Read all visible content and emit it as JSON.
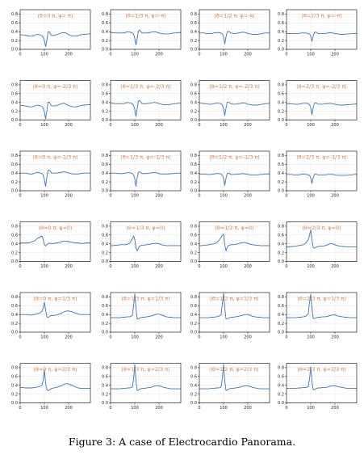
{
  "caption": "Figure 3: A case of Electrocardio Panorama.",
  "colors": {
    "title": "#e07b3a",
    "line": "#3a77b5",
    "grid": "#e3e3e3",
    "axis": "#000000"
  },
  "chart_data": {
    "type": "line",
    "layout": "grid",
    "rows": 6,
    "cols": 4,
    "xlim": [
      0,
      290
    ],
    "ylim": [
      0,
      0.9
    ],
    "xticks": [
      0,
      100,
      200
    ],
    "yticks": [
      0.0,
      0.2,
      0.4,
      0.6,
      0.8
    ],
    "grid": true,
    "x": [
      0,
      10,
      20,
      30,
      40,
      50,
      60,
      70,
      80,
      90,
      95,
      100,
      105,
      110,
      115,
      120,
      125,
      130,
      140,
      150,
      160,
      170,
      180,
      190,
      200,
      210,
      220,
      230,
      240,
      250,
      260,
      270,
      280,
      290
    ],
    "panels": [
      {
        "title": "(θ=0 π, φ=-π)",
        "y": [
          0.33,
          0.33,
          0.32,
          0.31,
          0.3,
          0.3,
          0.32,
          0.34,
          0.33,
          0.31,
          0.28,
          0.2,
          0.06,
          0.2,
          0.39,
          0.4,
          0.35,
          0.31,
          0.32,
          0.33,
          0.35,
          0.37,
          0.38,
          0.37,
          0.33,
          0.31,
          0.3,
          0.3,
          0.31,
          0.33,
          0.34,
          0.34,
          0.35,
          0.35
        ]
      },
      {
        "title": "(θ=1/3 π, φ=-π)",
        "y": [
          0.38,
          0.38,
          0.37,
          0.37,
          0.37,
          0.37,
          0.38,
          0.4,
          0.39,
          0.37,
          0.34,
          0.25,
          0.1,
          0.25,
          0.42,
          0.44,
          0.4,
          0.37,
          0.37,
          0.37,
          0.38,
          0.39,
          0.4,
          0.39,
          0.37,
          0.36,
          0.35,
          0.35,
          0.35,
          0.36,
          0.37,
          0.37,
          0.38,
          0.38
        ]
      },
      {
        "title": "(θ=1/2 π, φ=-π)",
        "y": [
          0.37,
          0.37,
          0.37,
          0.36,
          0.36,
          0.36,
          0.37,
          0.38,
          0.38,
          0.37,
          0.35,
          0.28,
          0.12,
          0.28,
          0.4,
          0.41,
          0.39,
          0.37,
          0.36,
          0.36,
          0.37,
          0.38,
          0.39,
          0.38,
          0.36,
          0.35,
          0.34,
          0.34,
          0.34,
          0.35,
          0.36,
          0.37,
          0.37,
          0.37
        ]
      },
      {
        "title": "(θ=2/3 π, φ=-π)",
        "y": [
          0.36,
          0.36,
          0.36,
          0.36,
          0.36,
          0.36,
          0.37,
          0.37,
          0.37,
          0.36,
          0.35,
          0.3,
          0.18,
          0.3,
          0.38,
          0.39,
          0.38,
          0.36,
          0.36,
          0.36,
          0.36,
          0.37,
          0.38,
          0.37,
          0.36,
          0.35,
          0.34,
          0.34,
          0.34,
          0.35,
          0.35,
          0.36,
          0.36,
          0.36
        ]
      },
      {
        "title": "(θ=0 π, φ=-2/3 π)",
        "y": [
          0.33,
          0.33,
          0.32,
          0.31,
          0.3,
          0.3,
          0.32,
          0.34,
          0.33,
          0.31,
          0.27,
          0.18,
          0.03,
          0.2,
          0.4,
          0.41,
          0.36,
          0.32,
          0.32,
          0.33,
          0.35,
          0.37,
          0.38,
          0.36,
          0.33,
          0.31,
          0.3,
          0.3,
          0.31,
          0.33,
          0.34,
          0.34,
          0.35,
          0.35
        ]
      },
      {
        "title": "(θ=1/3 π, φ=-2/3 π)",
        "y": [
          0.38,
          0.38,
          0.37,
          0.37,
          0.37,
          0.37,
          0.38,
          0.4,
          0.39,
          0.37,
          0.33,
          0.24,
          0.08,
          0.26,
          0.43,
          0.45,
          0.41,
          0.37,
          0.37,
          0.37,
          0.38,
          0.39,
          0.4,
          0.39,
          0.37,
          0.36,
          0.35,
          0.35,
          0.35,
          0.36,
          0.37,
          0.37,
          0.38,
          0.38
        ]
      },
      {
        "title": "(θ=1/2 π, φ=-2/3 π)",
        "y": [
          0.38,
          0.38,
          0.37,
          0.37,
          0.36,
          0.36,
          0.37,
          0.38,
          0.38,
          0.37,
          0.34,
          0.26,
          0.1,
          0.27,
          0.4,
          0.41,
          0.39,
          0.37,
          0.36,
          0.36,
          0.37,
          0.38,
          0.39,
          0.38,
          0.36,
          0.35,
          0.34,
          0.34,
          0.34,
          0.35,
          0.36,
          0.37,
          0.37,
          0.38
        ]
      },
      {
        "title": "(θ=2/3 π, φ=-2/3 π)",
        "y": [
          0.37,
          0.37,
          0.37,
          0.36,
          0.36,
          0.36,
          0.37,
          0.38,
          0.38,
          0.37,
          0.35,
          0.28,
          0.12,
          0.28,
          0.38,
          0.39,
          0.38,
          0.36,
          0.36,
          0.36,
          0.37,
          0.37,
          0.38,
          0.37,
          0.36,
          0.35,
          0.34,
          0.34,
          0.34,
          0.35,
          0.35,
          0.36,
          0.36,
          0.37
        ]
      },
      {
        "title": "(θ=0 π, φ=-1/3 π)",
        "y": [
          0.4,
          0.4,
          0.4,
          0.39,
          0.38,
          0.38,
          0.4,
          0.42,
          0.41,
          0.39,
          0.35,
          0.25,
          0.1,
          0.3,
          0.46,
          0.47,
          0.44,
          0.4,
          0.4,
          0.4,
          0.41,
          0.42,
          0.43,
          0.42,
          0.4,
          0.39,
          0.38,
          0.38,
          0.38,
          0.39,
          0.4,
          0.4,
          0.4,
          0.4
        ]
      },
      {
        "title": "(θ=1/3 π, φ=-1/3 π)",
        "y": [
          0.4,
          0.4,
          0.4,
          0.39,
          0.39,
          0.39,
          0.4,
          0.41,
          0.41,
          0.39,
          0.36,
          0.27,
          0.1,
          0.3,
          0.42,
          0.43,
          0.41,
          0.39,
          0.39,
          0.39,
          0.4,
          0.41,
          0.41,
          0.41,
          0.39,
          0.38,
          0.38,
          0.38,
          0.38,
          0.39,
          0.39,
          0.4,
          0.4,
          0.4
        ]
      },
      {
        "title": "(θ=1/2 π, φ=-1/3 π)",
        "y": [
          0.38,
          0.38,
          0.38,
          0.37,
          0.37,
          0.37,
          0.38,
          0.39,
          0.39,
          0.38,
          0.35,
          0.28,
          0.12,
          0.28,
          0.39,
          0.4,
          0.39,
          0.37,
          0.37,
          0.37,
          0.38,
          0.38,
          0.39,
          0.38,
          0.37,
          0.36,
          0.36,
          0.36,
          0.36,
          0.37,
          0.37,
          0.38,
          0.38,
          0.38
        ]
      },
      {
        "title": "(θ=2/3 π, φ=-1/3 π)",
        "y": [
          0.37,
          0.37,
          0.37,
          0.36,
          0.36,
          0.36,
          0.37,
          0.38,
          0.37,
          0.36,
          0.35,
          0.29,
          0.17,
          0.29,
          0.37,
          0.38,
          0.37,
          0.36,
          0.36,
          0.36,
          0.36,
          0.37,
          0.37,
          0.37,
          0.36,
          0.35,
          0.35,
          0.35,
          0.35,
          0.35,
          0.36,
          0.36,
          0.37,
          0.37
        ]
      },
      {
        "title": "(θ=0 π, φ=0)",
        "y": [
          0.42,
          0.42,
          0.42,
          0.42,
          0.43,
          0.45,
          0.47,
          0.52,
          0.55,
          0.58,
          0.5,
          0.38,
          0.35,
          0.38,
          0.4,
          0.42,
          0.41,
          0.4,
          0.41,
          0.42,
          0.43,
          0.45,
          0.46,
          0.46,
          0.45,
          0.44,
          0.43,
          0.42,
          0.42,
          0.41,
          0.41,
          0.42,
          0.42,
          0.42
        ]
      },
      {
        "title": "(θ=1/3 π, φ=0)",
        "y": [
          0.36,
          0.36,
          0.37,
          0.37,
          0.38,
          0.38,
          0.38,
          0.39,
          0.42,
          0.52,
          0.58,
          0.5,
          0.3,
          0.24,
          0.3,
          0.35,
          0.36,
          0.37,
          0.37,
          0.38,
          0.39,
          0.4,
          0.41,
          0.41,
          0.4,
          0.38,
          0.37,
          0.36,
          0.36,
          0.36,
          0.36,
          0.36,
          0.36,
          0.36
        ]
      },
      {
        "title": "(θ=1/2 π, φ=0)",
        "y": [
          0.36,
          0.36,
          0.37,
          0.37,
          0.38,
          0.39,
          0.4,
          0.42,
          0.47,
          0.55,
          0.6,
          0.62,
          0.38,
          0.24,
          0.32,
          0.36,
          0.37,
          0.38,
          0.38,
          0.39,
          0.4,
          0.42,
          0.43,
          0.43,
          0.41,
          0.39,
          0.38,
          0.37,
          0.37,
          0.36,
          0.36,
          0.36,
          0.36,
          0.36
        ]
      },
      {
        "title": "(θ=2/3 π, φ=0)",
        "y": [
          0.33,
          0.33,
          0.34,
          0.34,
          0.35,
          0.36,
          0.37,
          0.38,
          0.42,
          0.5,
          0.6,
          0.72,
          0.5,
          0.32,
          0.3,
          0.32,
          0.33,
          0.34,
          0.35,
          0.35,
          0.36,
          0.38,
          0.4,
          0.4,
          0.38,
          0.36,
          0.35,
          0.34,
          0.34,
          0.33,
          0.33,
          0.33,
          0.33,
          0.33
        ]
      },
      {
        "title": "(θ=0 π, φ=1/3 π)",
        "y": [
          0.4,
          0.4,
          0.4,
          0.4,
          0.39,
          0.39,
          0.4,
          0.42,
          0.43,
          0.47,
          0.55,
          0.68,
          0.5,
          0.35,
          0.33,
          0.35,
          0.37,
          0.38,
          0.38,
          0.39,
          0.41,
          0.43,
          0.46,
          0.48,
          0.48,
          0.47,
          0.45,
          0.43,
          0.41,
          0.4,
          0.4,
          0.4,
          0.4,
          0.4
        ]
      },
      {
        "title": "(θ=1/3 π, φ=1/3 π)",
        "y": [
          0.33,
          0.33,
          0.33,
          0.33,
          0.33,
          0.34,
          0.34,
          0.35,
          0.35,
          0.38,
          0.6,
          0.87,
          0.55,
          0.3,
          0.3,
          0.32,
          0.33,
          0.34,
          0.34,
          0.35,
          0.36,
          0.37,
          0.39,
          0.41,
          0.41,
          0.39,
          0.37,
          0.35,
          0.34,
          0.34,
          0.33,
          0.33,
          0.33,
          0.33
        ]
      },
      {
        "title": "(θ=1/2 π, φ=1/3 π)",
        "y": [
          0.33,
          0.33,
          0.33,
          0.33,
          0.33,
          0.34,
          0.34,
          0.35,
          0.36,
          0.4,
          0.65,
          0.88,
          0.55,
          0.3,
          0.3,
          0.32,
          0.33,
          0.34,
          0.34,
          0.35,
          0.36,
          0.37,
          0.39,
          0.4,
          0.4,
          0.38,
          0.36,
          0.35,
          0.34,
          0.34,
          0.33,
          0.33,
          0.33,
          0.33
        ]
      },
      {
        "title": "(θ=2/3 π, φ=1/3 π)",
        "y": [
          0.33,
          0.33,
          0.33,
          0.33,
          0.33,
          0.34,
          0.34,
          0.35,
          0.36,
          0.42,
          0.68,
          0.86,
          0.55,
          0.31,
          0.31,
          0.32,
          0.33,
          0.34,
          0.34,
          0.35,
          0.35,
          0.36,
          0.38,
          0.39,
          0.39,
          0.37,
          0.36,
          0.35,
          0.34,
          0.34,
          0.33,
          0.33,
          0.33,
          0.33
        ]
      },
      {
        "title": "(θ=0 π, φ=2/3 π)",
        "y": [
          0.35,
          0.35,
          0.34,
          0.34,
          0.34,
          0.34,
          0.35,
          0.36,
          0.37,
          0.4,
          0.52,
          0.75,
          0.45,
          0.3,
          0.28,
          0.29,
          0.31,
          0.33,
          0.34,
          0.35,
          0.37,
          0.39,
          0.42,
          0.44,
          0.43,
          0.41,
          0.38,
          0.36,
          0.34,
          0.33,
          0.33,
          0.33,
          0.33,
          0.33
        ]
      },
      {
        "title": "(θ=1/3 π, φ=2/3 π)",
        "y": [
          0.32,
          0.32,
          0.32,
          0.32,
          0.32,
          0.33,
          0.33,
          0.34,
          0.34,
          0.36,
          0.55,
          0.87,
          0.5,
          0.28,
          0.29,
          0.31,
          0.32,
          0.33,
          0.33,
          0.34,
          0.35,
          0.36,
          0.38,
          0.39,
          0.39,
          0.37,
          0.35,
          0.34,
          0.33,
          0.32,
          0.32,
          0.32,
          0.32,
          0.32
        ]
      },
      {
        "title": "(θ=1/2 π, φ=2/3 π)",
        "y": [
          0.32,
          0.32,
          0.32,
          0.32,
          0.32,
          0.33,
          0.33,
          0.34,
          0.34,
          0.36,
          0.58,
          0.87,
          0.5,
          0.28,
          0.29,
          0.31,
          0.32,
          0.33,
          0.33,
          0.34,
          0.35,
          0.36,
          0.38,
          0.39,
          0.39,
          0.37,
          0.35,
          0.34,
          0.33,
          0.32,
          0.32,
          0.32,
          0.32,
          0.32
        ]
      },
      {
        "title": "(θ=2/3 π, φ=2/3 π)",
        "y": [
          0.33,
          0.33,
          0.33,
          0.33,
          0.33,
          0.34,
          0.34,
          0.35,
          0.35,
          0.37,
          0.55,
          0.82,
          0.48,
          0.3,
          0.3,
          0.32,
          0.33,
          0.34,
          0.34,
          0.35,
          0.35,
          0.36,
          0.38,
          0.39,
          0.39,
          0.37,
          0.36,
          0.35,
          0.34,
          0.33,
          0.33,
          0.33,
          0.33,
          0.33
        ]
      }
    ]
  }
}
